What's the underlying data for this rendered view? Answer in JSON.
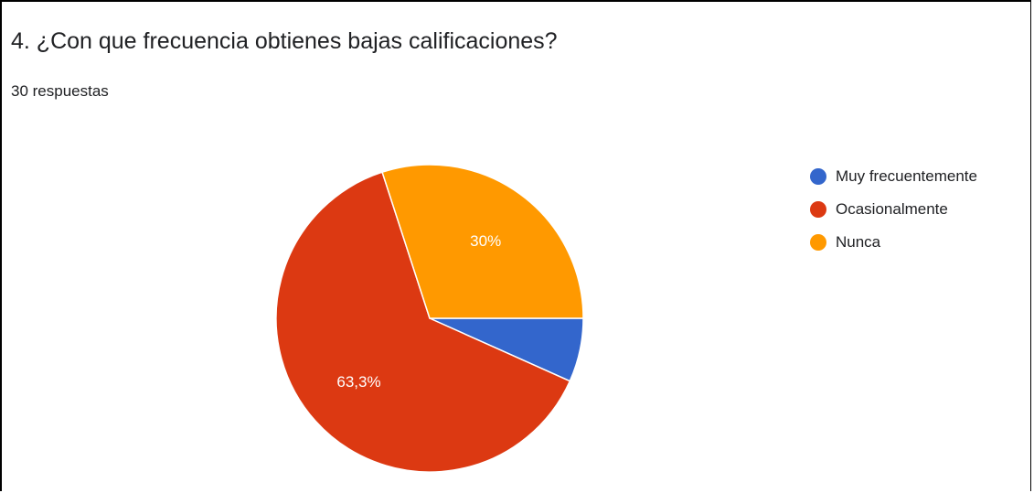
{
  "question": {
    "title": "4. ¿Con que frecuencia obtienes bajas calificaciones?",
    "responses": "30 respuestas"
  },
  "chart_data": {
    "type": "pie",
    "categories": [
      "Muy frecuentemente",
      "Ocasionalmente",
      "Nunca"
    ],
    "values": [
      6.7,
      63.3,
      30
    ],
    "data_labels": [
      "",
      "63,3%",
      "30%"
    ],
    "colors": [
      "#3366cc",
      "#dc3912",
      "#ff9900"
    ],
    "legend_position": "right"
  }
}
